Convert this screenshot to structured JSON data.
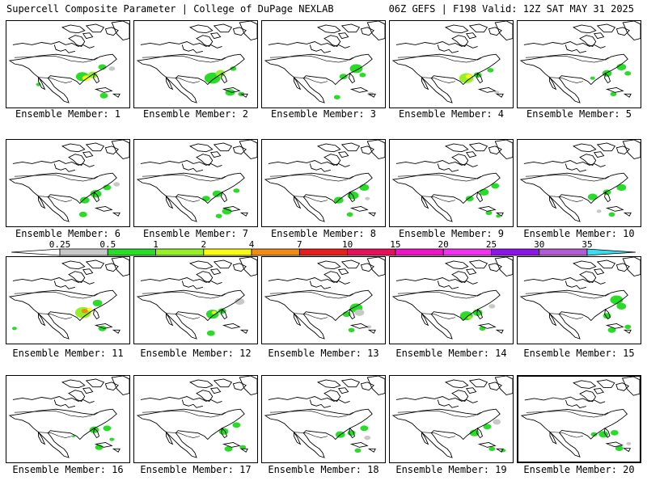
{
  "header": {
    "left_title": "Supercell Composite Parameter | College of DuPage NEXLAB",
    "right_title": "06Z GEFS | F198 Valid: 12Z SAT MAY 31 2025"
  },
  "colorbar": {
    "ticks": [
      "0.25",
      "0.5",
      "1",
      "2",
      "4",
      "7",
      "10",
      "15",
      "20",
      "25",
      "30",
      "35"
    ],
    "colors": [
      "#c8c8c8",
      "#28dc28",
      "#96f028",
      "#fafa14",
      "#f08c14",
      "#e61e1e",
      "#e6105a",
      "#f014c8",
      "#f032f0",
      "#8c14e6",
      "#b45ad2",
      "#3cdcf0"
    ],
    "left_arrow_color": "#ffffff"
  },
  "members": [
    {
      "label": "Ensemble Member: 1"
    },
    {
      "label": "Ensemble Member: 2"
    },
    {
      "label": "Ensemble Member: 3"
    },
    {
      "label": "Ensemble Member: 4"
    },
    {
      "label": "Ensemble Member: 5"
    },
    {
      "label": "Ensemble Member: 6"
    },
    {
      "label": "Ensemble Member: 7"
    },
    {
      "label": "Ensemble Member: 8"
    },
    {
      "label": "Ensemble Member: 9"
    },
    {
      "label": "Ensemble Member: 10"
    },
    {
      "label": "Ensemble Member: 11"
    },
    {
      "label": "Ensemble Member: 12"
    },
    {
      "label": "Ensemble Member: 13"
    },
    {
      "label": "Ensemble Member: 14"
    },
    {
      "label": "Ensemble Member: 15"
    },
    {
      "label": "Ensemble Member: 16"
    },
    {
      "label": "Ensemble Member: 17"
    },
    {
      "label": "Ensemble Member: 18"
    },
    {
      "label": "Ensemble Member: 19"
    },
    {
      "label": "Ensemble Member: 20"
    }
  ]
}
